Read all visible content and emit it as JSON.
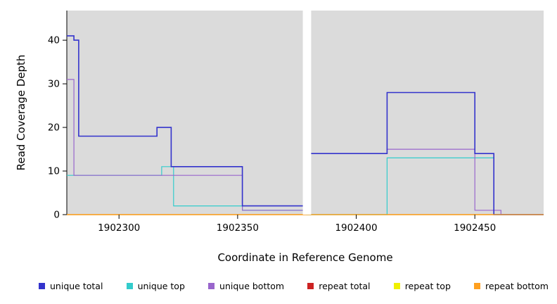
{
  "chart_data": {
    "type": "line",
    "subtype": "step-after-coverage-plot",
    "title": "",
    "xlabel": "Coordinate in Reference Genome",
    "ylabel": "Read Coverage Depth",
    "x_min": 1902278,
    "x_max": 1902479,
    "y_min": 0,
    "y_max": 46.8,
    "plot_bg": "#dbdbdb",
    "gap": {
      "from": 1902377.5,
      "to": 1902381
    },
    "x_ticks": [
      {
        "value": 1902300,
        "label": "1902300"
      },
      {
        "value": 1902350,
        "label": "1902350"
      },
      {
        "value": 1902400,
        "label": "1902400"
      },
      {
        "value": 1902450,
        "label": "1902450"
      }
    ],
    "y_ticks": [
      {
        "value": 0,
        "label": "0"
      },
      {
        "value": 10,
        "label": "10"
      },
      {
        "value": 20,
        "label": "20"
      },
      {
        "value": 30,
        "label": "30"
      },
      {
        "value": 40,
        "label": "40"
      }
    ],
    "draw_order": [
      3,
      4,
      1,
      2,
      0,
      5
    ],
    "series": [
      {
        "name": "unique total",
        "color": "#3333cc",
        "width": 1.6,
        "points": [
          [
            1902278,
            41
          ],
          [
            1902281,
            40
          ],
          [
            1902283,
            18
          ],
          [
            1902316,
            20
          ],
          [
            1902322,
            11
          ],
          [
            1902352,
            2
          ],
          [
            1902379,
            14
          ],
          [
            1902413,
            28
          ],
          [
            1902450,
            14
          ],
          [
            1902458,
            0
          ],
          [
            1902479,
            0
          ]
        ]
      },
      {
        "name": "unique top",
        "color": "#33cccc",
        "width": 1.2,
        "points": [
          [
            1902278,
            9
          ],
          [
            1902318,
            11
          ],
          [
            1902323,
            2
          ],
          [
            1902352,
            1
          ],
          [
            1902379,
            0
          ],
          [
            1902413,
            13
          ],
          [
            1902458,
            0
          ],
          [
            1902479,
            0
          ]
        ]
      },
      {
        "name": "unique bottom",
        "color": "#9966cc",
        "width": 1.2,
        "points": [
          [
            1902278,
            31
          ],
          [
            1902281,
            9
          ],
          [
            1902352,
            1
          ],
          [
            1902379,
            14
          ],
          [
            1902413,
            15
          ],
          [
            1902450,
            1
          ],
          [
            1902461,
            0
          ],
          [
            1902479,
            0
          ]
        ]
      },
      {
        "name": "repeat total",
        "color": "#cc2222",
        "width": 1.2,
        "points": [
          [
            1902278,
            0
          ],
          [
            1902479,
            0
          ]
        ]
      },
      {
        "name": "repeat top",
        "color": "#f0f000",
        "width": 1.2,
        "points": [
          [
            1902278,
            0
          ],
          [
            1902479,
            0
          ]
        ]
      },
      {
        "name": "repeat bottom",
        "color": "#ffa020",
        "width": 1.2,
        "points": [
          [
            1902278,
            0
          ],
          [
            1902479,
            0
          ]
        ]
      }
    ],
    "legend": [
      {
        "label": "unique total",
        "color": "#3333cc"
      },
      {
        "label": "unique top",
        "color": "#33cccc"
      },
      {
        "label": "unique bottom",
        "color": "#9966cc"
      },
      {
        "label": "repeat total",
        "color": "#cc2222"
      },
      {
        "label": "repeat top",
        "color": "#f0f000"
      },
      {
        "label": "repeat bottom",
        "color": "#ffa020"
      }
    ]
  }
}
